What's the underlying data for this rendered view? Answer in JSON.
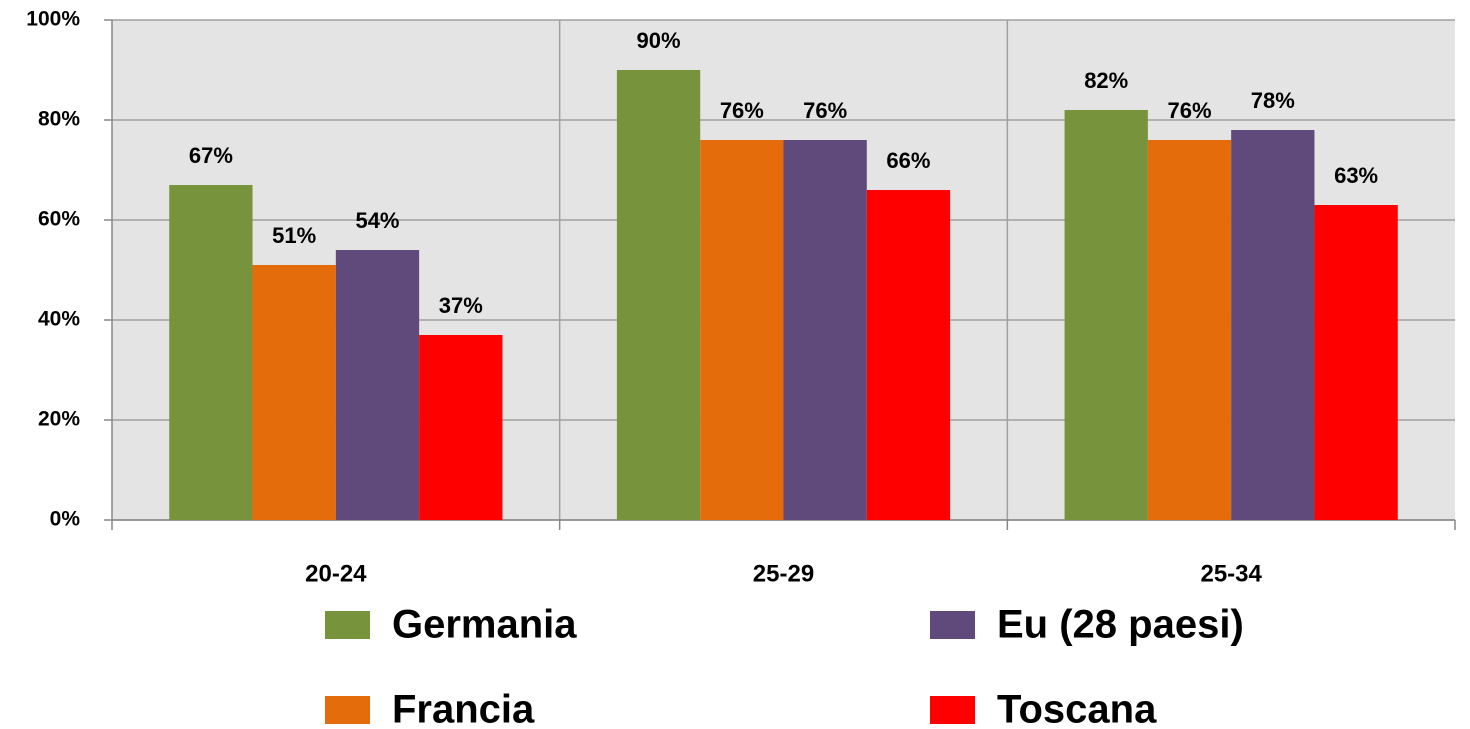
{
  "chart_data": {
    "type": "bar",
    "categories": [
      "20-24",
      "25-29",
      "25-34"
    ],
    "series": [
      {
        "name": "Germania",
        "color": "#77933c",
        "values": [
          67,
          90,
          82
        ],
        "value_labels": [
          "67%",
          "90%",
          "82%"
        ]
      },
      {
        "name": "Francia",
        "color": "#e46c0a",
        "values": [
          51,
          76,
          76
        ],
        "value_labels": [
          "51%",
          "76%",
          "76%"
        ]
      },
      {
        "name": "Eu (28 paesi)",
        "color": "#604a7b",
        "values": [
          54,
          76,
          78
        ],
        "value_labels": [
          "54%",
          "76%",
          "78%"
        ]
      },
      {
        "name": "Toscana",
        "color": "#ff0000",
        "values": [
          37,
          66,
          63
        ],
        "value_labels": [
          "37%",
          "66%",
          "63%"
        ]
      }
    ],
    "ylim": [
      0,
      100
    ],
    "yticks": [
      {
        "value": 0,
        "label": "0%"
      },
      {
        "value": 20,
        "label": "20%"
      },
      {
        "value": 40,
        "label": "40%"
      },
      {
        "value": 60,
        "label": "60%"
      },
      {
        "value": 80,
        "label": "80%"
      },
      {
        "value": 100,
        "label": "100%"
      }
    ],
    "grid": true,
    "legend": "bottom"
  }
}
